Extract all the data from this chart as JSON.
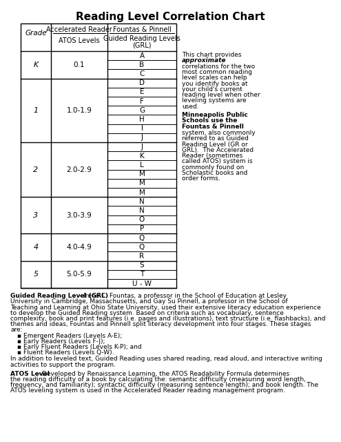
{
  "title": "Reading Level Correlation Chart",
  "grades": [
    {
      "grade": "K",
      "atos": "0.1",
      "grl": [
        "A",
        "B",
        "C"
      ]
    },
    {
      "grade": "1",
      "atos": "1.0-1.9",
      "grl": [
        "D",
        "E",
        "F",
        "G",
        "H",
        "I",
        "J"
      ]
    },
    {
      "grade": "2",
      "atos": "2.0-2.9",
      "grl": [
        "J",
        "K",
        "L",
        "M",
        "M",
        "M"
      ]
    },
    {
      "grade": "3",
      "atos": "3.0-3.9",
      "grl": [
        "N",
        "N",
        "O",
        "P"
      ]
    },
    {
      "grade": "4",
      "atos": "4.0-4.9",
      "grl": [
        "Q",
        "Q",
        "R"
      ]
    },
    {
      "grade": "5",
      "atos": "5.0-5.9",
      "grl": [
        "S",
        "T",
        "U - W"
      ]
    }
  ],
  "side_top_line1": "This chart provides",
  "side_top_line2": "approximate",
  "side_top_lines": [
    "correlations for the two",
    "most common reading",
    "level scales can help",
    "you identify books at",
    "your child's current",
    "reading level when other",
    "leveling systems are",
    "used."
  ],
  "side_bold_lines": [
    "Minneapolis Public",
    "Schools use the",
    "Fountas & Pinnell"
  ],
  "side_body_lines": [
    "system, also commonly",
    "referred to as Guided",
    "Reading Level (GR or",
    "GRL).  The Accelerated",
    "Reader (sometimes",
    "called ATOS) system is",
    "commonly found on",
    "Scholastic books and",
    "order forms."
  ],
  "fn_grl_bold": "Guided Reading Level (GRL)",
  "fn_grl_line1_rest": " - Irene C. Fountas, a professor in the School of Education at Lesley",
  "fn_grl_lines": [
    "University in Cambridge, Massachusetts, and Gay Su Pinnell, a professor in the School of",
    "Teaching and Learning at Ohio State University, used their extensive literacy education experience",
    "to develop the Guided Reading system. Based on criteria such as vocabulary, sentence",
    "complexity, book and print features (i.e. pages and illustrations), text structure (i.e. flashbacks), and",
    "themes and ideas, Fountas and Pinnell split literacy development into four stages. These stages",
    "are:"
  ],
  "bullets": [
    "Emergent Readers (Levels A-E);",
    "Early Readers (Levels F-J);",
    "Early Fluent Readers (Levels K-P); and",
    "Fluent Readers (Levels Q-W)."
  ],
  "fn_mid_lines": [
    "In addition to leveled text, Guided Reading uses shared reading, read aloud, and interactive writing",
    "activities to support the program."
  ],
  "fn_atos_bold": "ATOS Level",
  "fn_atos_line1_rest": " - Developed by Renaissance Learning, the ATOS Readability Formula determines",
  "fn_atos_lines": [
    "the reading difficulty of a book by calculating the: semantic difficulty (measuring word length,",
    "frequency, and familiarity); syntactic difficulty (measuring sentence length); and book length. The",
    "ATOS leveling system is used in the Accelerated Reader reading management program."
  ]
}
